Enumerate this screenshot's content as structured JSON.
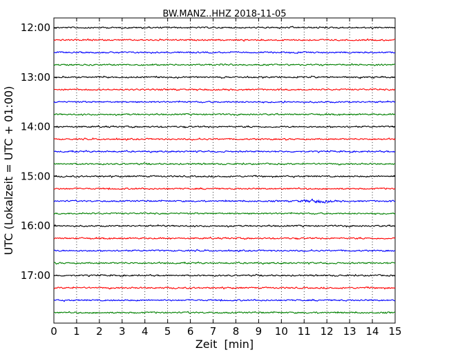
{
  "chart_data": {
    "type": "line",
    "title": "BW.MANZ..HHZ 2018-11-05",
    "xlabel": "Zeit  [min]",
    "ylabel": "UTC (Lokalzeit = UTC + 01:00)",
    "xlim": [
      0,
      15
    ],
    "x_ticks": [
      "0",
      "1",
      "2",
      "3",
      "4",
      "5",
      "6",
      "7",
      "8",
      "9",
      "10",
      "11",
      "12",
      "13",
      "14",
      "15"
    ],
    "y_ticks": [
      "12:00",
      "13:00",
      "14:00",
      "15:00",
      "16:00",
      "17:00"
    ],
    "grid": "vertical dotted",
    "trace_start_times": [
      "12:00",
      "12:15",
      "12:30",
      "12:45",
      "13:00",
      "13:15",
      "13:30",
      "13:45",
      "14:00",
      "14:15",
      "14:30",
      "14:45",
      "15:00",
      "15:15",
      "15:30",
      "15:45",
      "16:00",
      "16:15",
      "16:30",
      "16:45",
      "17:00",
      "17:15",
      "17:30",
      "17:45"
    ],
    "trace_colors": [
      "#000000",
      "#ff0000",
      "#0000ff",
      "#008000"
    ],
    "notable_events": [
      {
        "trace": "15:30",
        "x_min": [
          10.5,
          12.5
        ],
        "description": "larger amplitude oscillation"
      }
    ]
  }
}
